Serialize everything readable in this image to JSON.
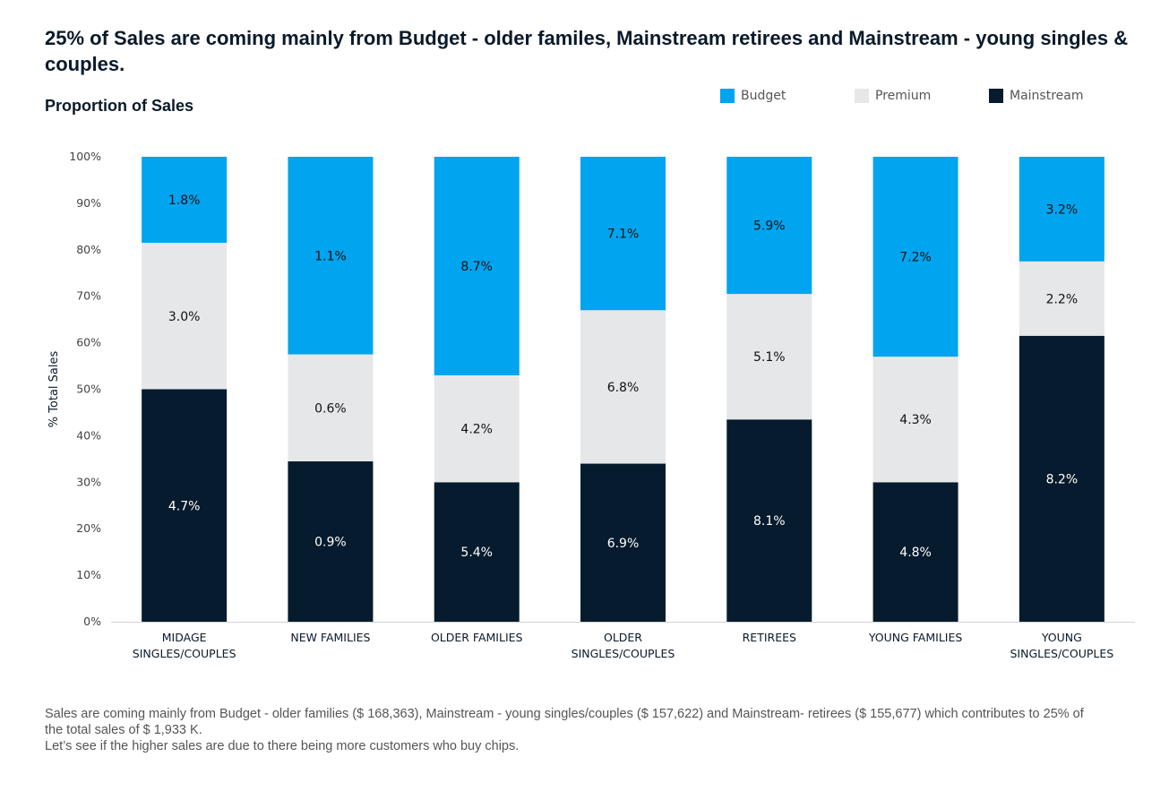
{
  "headline": {
    "highlight": "25%",
    "text": " of Sales are coming mainly from Budget - older familes, Mainstream retirees and Mainstream - young singles & couples."
  },
  "footnote": {
    "line1": "Sales are coming mainly from Budget - older families ($ 168,363), Mainstream - young singles/couples ($ 157,622) and Mainstream- retirees ($ 155,677) which contributes to 25% of the total sales of $ 1,933 K.",
    "line2": "Let’s see if the higher sales are due to there being more customers who buy chips."
  },
  "colors": {
    "budget": "#00A4EF",
    "premium": "#E6E7E9",
    "mainstream": "#061B2D",
    "text_dark": "#0a1a2a",
    "axis_text": "#444444"
  },
  "chart_data": {
    "type": "bar",
    "stacked": true,
    "normalized": true,
    "title": "Proportion of Sales",
    "xlabel": "",
    "ylabel": "% Total Sales",
    "ylim": [
      0,
      100
    ],
    "yticks": [
      "0%",
      "10%",
      "20%",
      "30%",
      "40%",
      "50%",
      "60%",
      "70%",
      "80%",
      "90%",
      "100%"
    ],
    "legend_position": "top-right",
    "categories": [
      [
        "MIDAGE",
        "SINGLES/COUPLES"
      ],
      [
        "NEW FAMILIES"
      ],
      [
        "OLDER FAMILIES"
      ],
      [
        "OLDER",
        "SINGLES/COUPLES"
      ],
      [
        "RETIREES"
      ],
      [
        "YOUNG FAMILIES"
      ],
      [
        "YOUNG",
        "SINGLES/COUPLES"
      ]
    ],
    "series": [
      {
        "name": "Mainstream",
        "key": "mainstream",
        "share_pct": [
          50,
          34.5,
          30,
          34,
          43.5,
          30,
          61.5
        ],
        "labels": [
          "4.7%",
          "0.9%",
          "5.4%",
          "6.9%",
          "8.1%",
          "4.8%",
          "8.2%"
        ]
      },
      {
        "name": "Premium",
        "key": "premium",
        "share_pct": [
          31.5,
          23,
          23,
          33,
          27,
          27,
          16
        ],
        "labels": [
          "3.0%",
          "0.6%",
          "4.2%",
          "6.8%",
          "5.1%",
          "4.3%",
          "2.2%"
        ]
      },
      {
        "name": "Budget",
        "key": "budget",
        "share_pct": [
          18.5,
          42.5,
          47,
          33,
          29.5,
          43,
          22.5
        ],
        "labels": [
          "1.8%",
          "1.1%",
          "8.7%",
          "7.1%",
          "5.9%",
          "7.2%",
          "3.2%"
        ]
      }
    ],
    "legend": [
      {
        "name": "Budget",
        "key": "budget"
      },
      {
        "name": "Premium",
        "key": "premium"
      },
      {
        "name": "Mainstream",
        "key": "mainstream"
      }
    ]
  }
}
